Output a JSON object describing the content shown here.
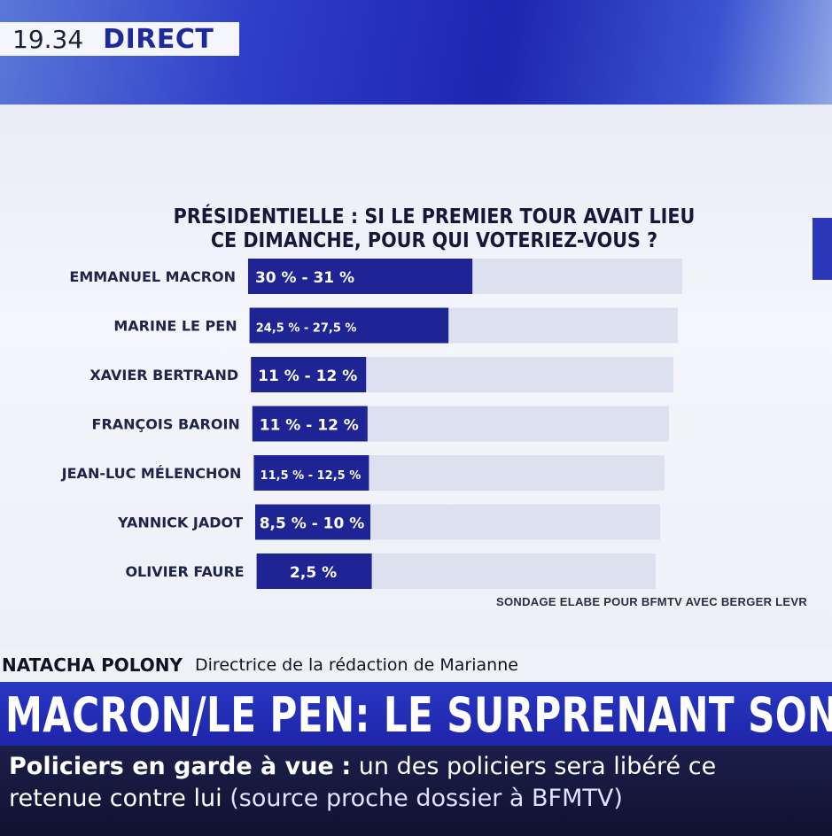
{
  "header": {
    "time": "19.34",
    "live_label": "DIRECT"
  },
  "chart_data": {
    "type": "bar",
    "orientation": "horizontal",
    "title_lines": [
      "PRÉSIDENTIELLE : SI LE PREMIER TOUR AVAIT LIEU",
      "CE DIMANCHE, POUR QUI VOTERIEZ-VOUS ?"
    ],
    "categories": [
      "EMMANUEL MACRON",
      "MARINE LE PEN",
      "XAVIER BERTRAND",
      "FRANÇOIS BAROIN",
      "JEAN-LUC MÉLENCHON",
      "YANNICK JADOT",
      "OLIVIER FAURE"
    ],
    "value_labels": [
      "30 % - 31 %",
      "24,5 % - 27,5 %",
      "11 % - 12 %",
      "11 % - 12 %",
      "11,5 % - 12,5 %",
      "8,5 % - 10 %",
      "2,5 %"
    ],
    "values_low": [
      30,
      24.5,
      11,
      11,
      11.5,
      8.5,
      2.5
    ],
    "values_high": [
      31,
      27.5,
      12,
      12,
      12.5,
      10,
      2.5
    ],
    "xlim": [
      0,
      60
    ],
    "source": "SONDAGE ELABE POUR BFMTV AVEC BERGER LEVR",
    "colors": {
      "bar": "#1e2494",
      "track": "#dde0ee",
      "label": "#20234a"
    }
  },
  "guest": {
    "name": "NATACHA POLONY",
    "role": "Directrice de la rédaction de Marianne"
  },
  "headline": "MACRON/LE PEN: LE SURPRENANT SONDA",
  "ticker": {
    "lead": "Policiers en garde à vue",
    "separator": ":",
    "text": "un des policiers sera libéré ce",
    "line2": "retenue contre lui",
    "source": "(source proche dossier à BFMTV)"
  }
}
